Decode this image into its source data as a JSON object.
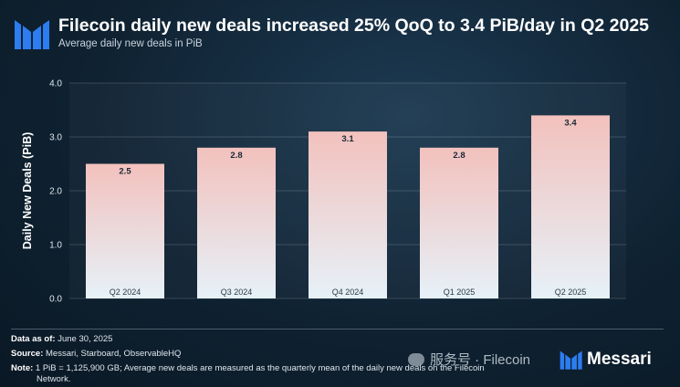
{
  "header": {
    "title": "Filecoin daily new deals increased 25% QoQ to 3.4 PiB/day in Q2 2025",
    "subtitle": "Average daily new deals in PiB"
  },
  "chart_data": {
    "type": "bar",
    "categories": [
      "Q2 2024",
      "Q3 2024",
      "Q4 2024",
      "Q1 2025",
      "Q2 2025"
    ],
    "values": [
      2.5,
      2.8,
      3.1,
      2.8,
      3.4
    ],
    "value_labels": [
      "2.5",
      "2.8",
      "3.1",
      "2.8",
      "3.4"
    ],
    "yticks": [
      "0.0",
      "1.0",
      "2.0",
      "3.0",
      "4.0"
    ],
    "ylabel": "Daily New Deals (PiB)",
    "ylim": [
      0,
      4
    ],
    "grid": true,
    "colors": {
      "bar_top": "#f2c1bd",
      "bar_bottom": "#e6f1f8"
    }
  },
  "footer": {
    "data_as_of_label": "Data as of:",
    "data_as_of": " June 30, 2025",
    "source_label": "Source:",
    "source": " Messari, Starboard, ObservableHQ",
    "note_label": "Note:",
    "note_line1": " 1 PiB = 1,125,900 GB; Average new deals are measured as the quarterly mean of the daily new deals on the Filecoin",
    "note_line2": "Network."
  },
  "watermark": {
    "text": "服务号 · Filecoin"
  },
  "brand": {
    "name": "Messari",
    "logo_color": "#2c7df0"
  }
}
